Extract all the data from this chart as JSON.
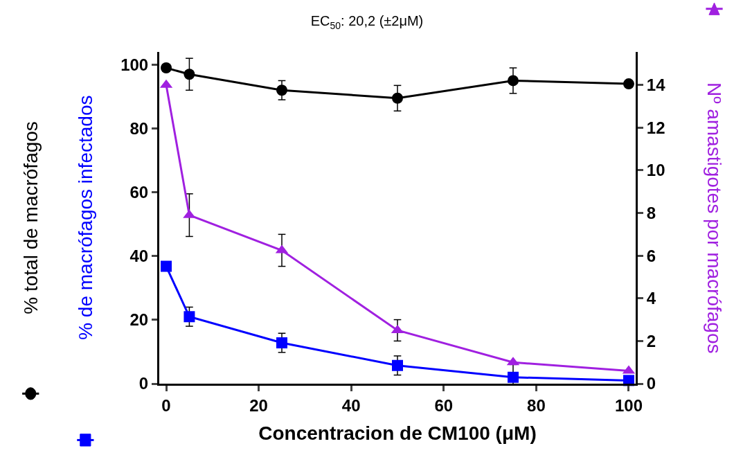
{
  "chart_data": {
    "type": "line",
    "title": "EC$_{50}$: 20,2 (±2μM)",
    "xlabel": "Concentracion de CM100 (μM)",
    "x": [
      0,
      5,
      25,
      50,
      75,
      100
    ],
    "xlim": [
      -1.5,
      101.5
    ],
    "xticks": [
      0,
      20,
      40,
      60,
      80,
      100
    ],
    "ylim": [
      0,
      104
    ],
    "yticks": [
      0,
      20,
      40,
      60,
      80,
      100
    ],
    "y2lim": [
      0,
      15.55
    ],
    "y2ticks": [
      0,
      2,
      4,
      6,
      8,
      10,
      12,
      14
    ],
    "legend": false,
    "grid": false,
    "series": [
      {
        "name": "% total de macrófagos",
        "color": "#000000",
        "marker": "circle",
        "values": [
          99,
          97,
          92,
          89.5,
          95,
          94
        ],
        "errors": [
          1,
          5,
          3,
          4,
          4,
          null
        ]
      },
      {
        "name": "% de macrófagos infectados",
        "color": "#0000ff",
        "marker": "square",
        "values": [
          36.8,
          21,
          12.8,
          5.7,
          2,
          1
        ],
        "errors": [
          null,
          3,
          3,
          3,
          4,
          null
        ]
      },
      {
        "name": "Nº amastigotes por macrófagos",
        "color": "#a020e0",
        "marker": "triangle",
        "axis": "y2",
        "values": [
          14,
          7.9,
          6.25,
          2.5,
          1.0,
          0.6
        ],
        "errors": [
          null,
          1,
          0.75,
          0.5,
          null,
          null
        ]
      }
    ]
  }
}
